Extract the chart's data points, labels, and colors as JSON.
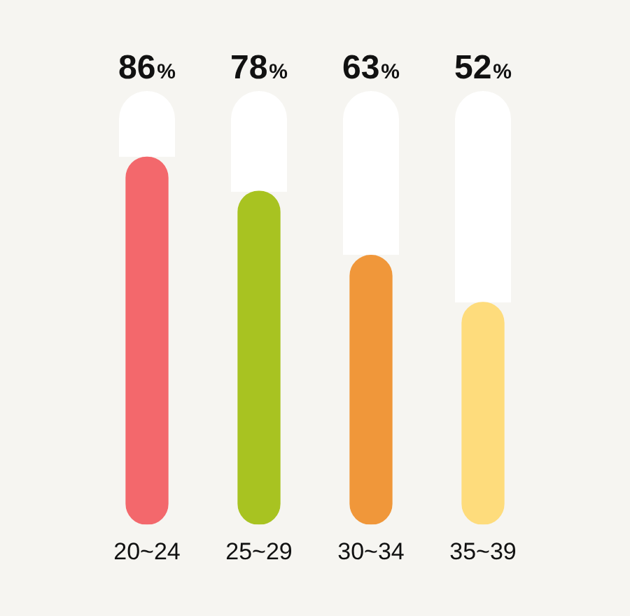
{
  "chart_data": {
    "type": "bar",
    "categories": [
      "20~24",
      "25~29",
      "30~34",
      "35~39"
    ],
    "values": [
      86,
      78,
      63,
      52
    ],
    "colors": [
      "#f3686c",
      "#a8c321",
      "#f0973a",
      "#fedc7c"
    ],
    "value_labels": [
      "86%",
      "78%",
      "63%",
      "52%"
    ],
    "tick_labels": "x"
  }
}
